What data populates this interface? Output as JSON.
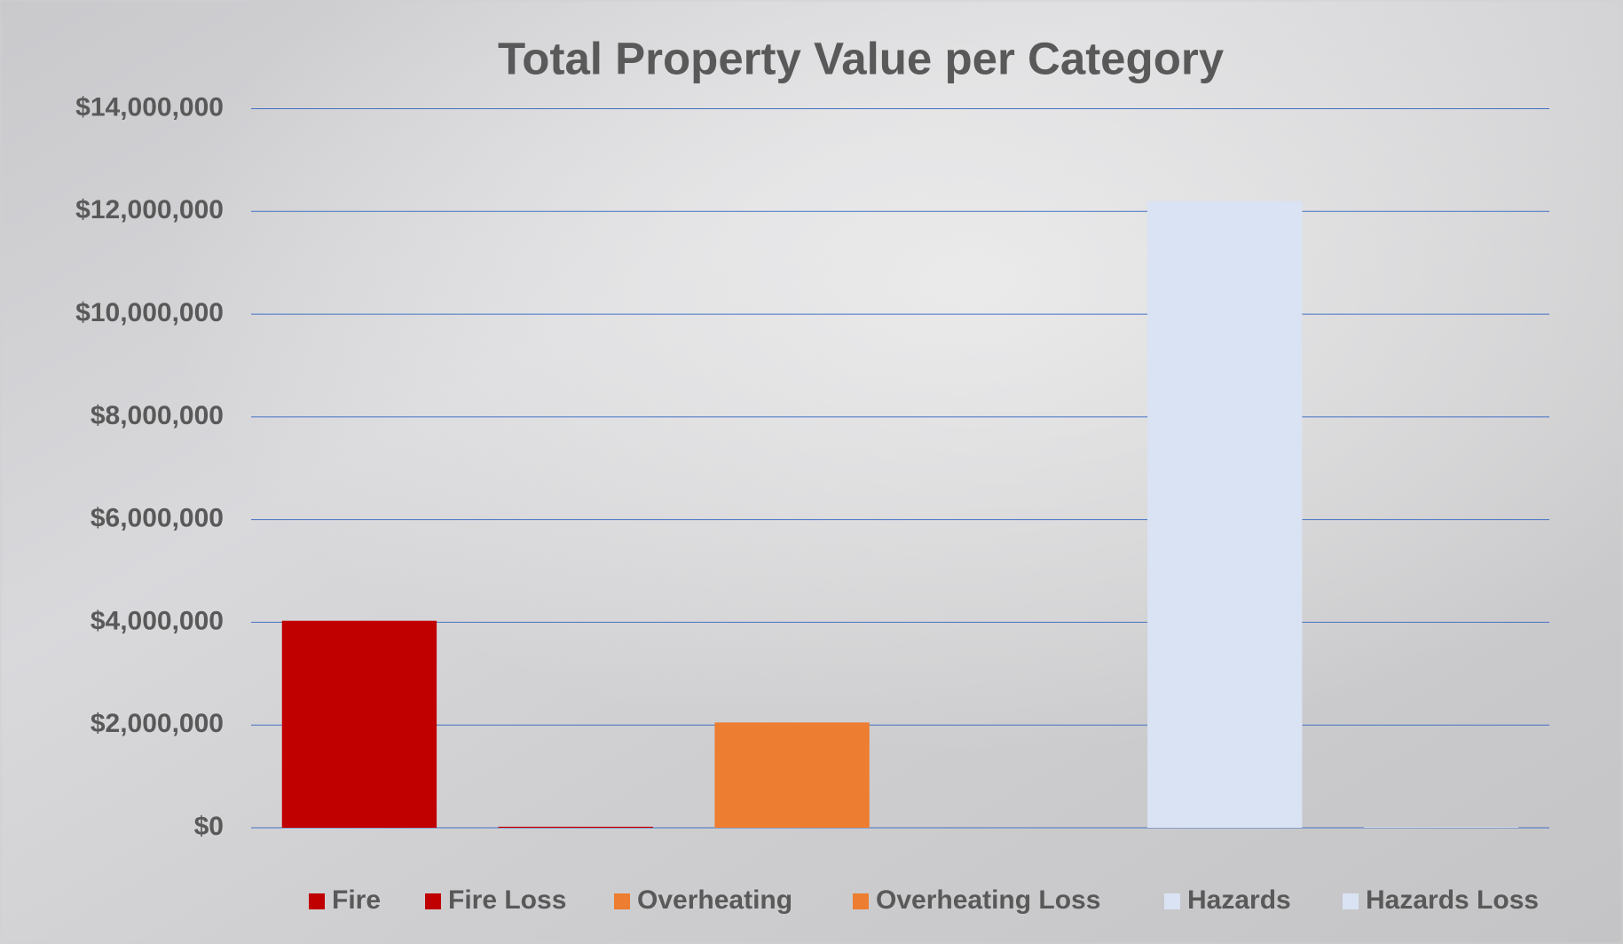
{
  "chart_data": {
    "type": "bar",
    "title": "Total Property Value per Category",
    "categories": [
      null
    ],
    "series": [
      {
        "name": "Fire",
        "color": "#c00000",
        "values": [
          4030000
        ]
      },
      {
        "name": "Fire Loss",
        "color": "#c00000",
        "values": [
          20000
        ]
      },
      {
        "name": "Overheating",
        "color": "#ed7d31",
        "values": [
          2050000
        ]
      },
      {
        "name": "Overheating Loss",
        "color": "#ed7d31",
        "values": [
          0
        ]
      },
      {
        "name": "Hazards",
        "color": "#dae3f3",
        "values": [
          12200000
        ]
      },
      {
        "name": "Hazards Loss",
        "color": "#dae3f3",
        "values": [
          10000
        ]
      }
    ],
    "ylim": [
      0,
      14000000
    ],
    "yticks": [
      {
        "value": 0,
        "label": "$0"
      },
      {
        "value": 2000000,
        "label": "$2,000,000"
      },
      {
        "value": 4000000,
        "label": "$4,000,000"
      },
      {
        "value": 6000000,
        "label": "$6,000,000"
      },
      {
        "value": 8000000,
        "label": "$8,000,000"
      },
      {
        "value": 10000000,
        "label": "$10,000,000"
      },
      {
        "value": 12000000,
        "label": "$12,000,000"
      },
      {
        "value": 14000000,
        "label": "$14,000,000"
      }
    ],
    "grid": true,
    "legend": "bottom"
  }
}
